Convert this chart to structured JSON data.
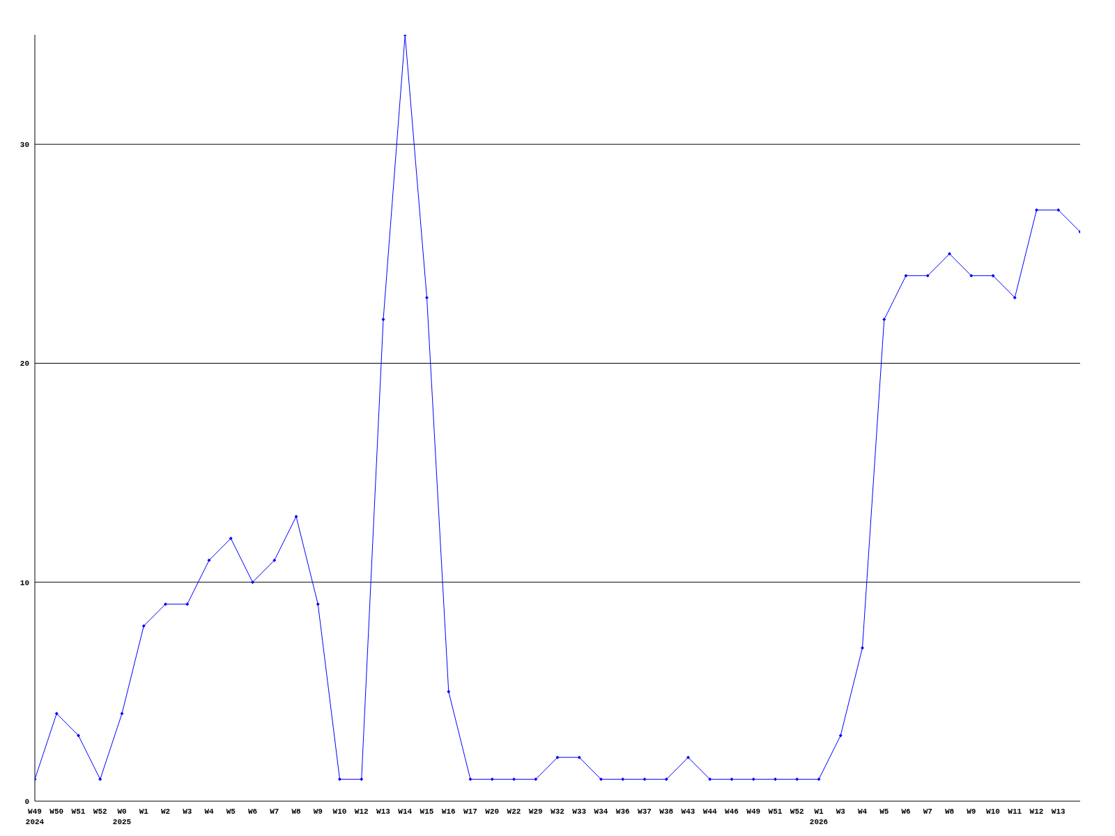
{
  "chart_data": {
    "type": "line",
    "categories": [
      "W49\n2024",
      "W50",
      "W51",
      "W52",
      "W0\n2025",
      "W1",
      "W2",
      "W3",
      "W4",
      "W5",
      "W6",
      "W7",
      "W8",
      "W9",
      "W10",
      "W12",
      "W13",
      "W14",
      "W15",
      "W16",
      "W17",
      "W20",
      "W22",
      "W29",
      "W32",
      "W33",
      "W34",
      "W36",
      "W37",
      "W38",
      "W43",
      "W44",
      "W46",
      "W49",
      "W51",
      "W52",
      "W1\n2026",
      "W3",
      "W4",
      "W5",
      "W6",
      "W7",
      "W8",
      "W9",
      "W10",
      "W11",
      "W12",
      "W13",
      null
    ],
    "series": [
      {
        "color": "#0000ff",
        "values": [
          1,
          4,
          3,
          1,
          4,
          8,
          9,
          9,
          11,
          12,
          10,
          11,
          13,
          9,
          1,
          1,
          22,
          35,
          23,
          5,
          1,
          1,
          1,
          1,
          2,
          2,
          1,
          1,
          1,
          1,
          2,
          1,
          1,
          1,
          1,
          1,
          1,
          3,
          7,
          22,
          24,
          24,
          25,
          24,
          24,
          23,
          27,
          27,
          26
        ]
      }
    ],
    "ylim": [
      0,
      35
    ],
    "yticks": [
      0,
      10,
      20,
      30
    ],
    "grid": "y",
    "marker": "diamond",
    "line_style": "solid"
  }
}
